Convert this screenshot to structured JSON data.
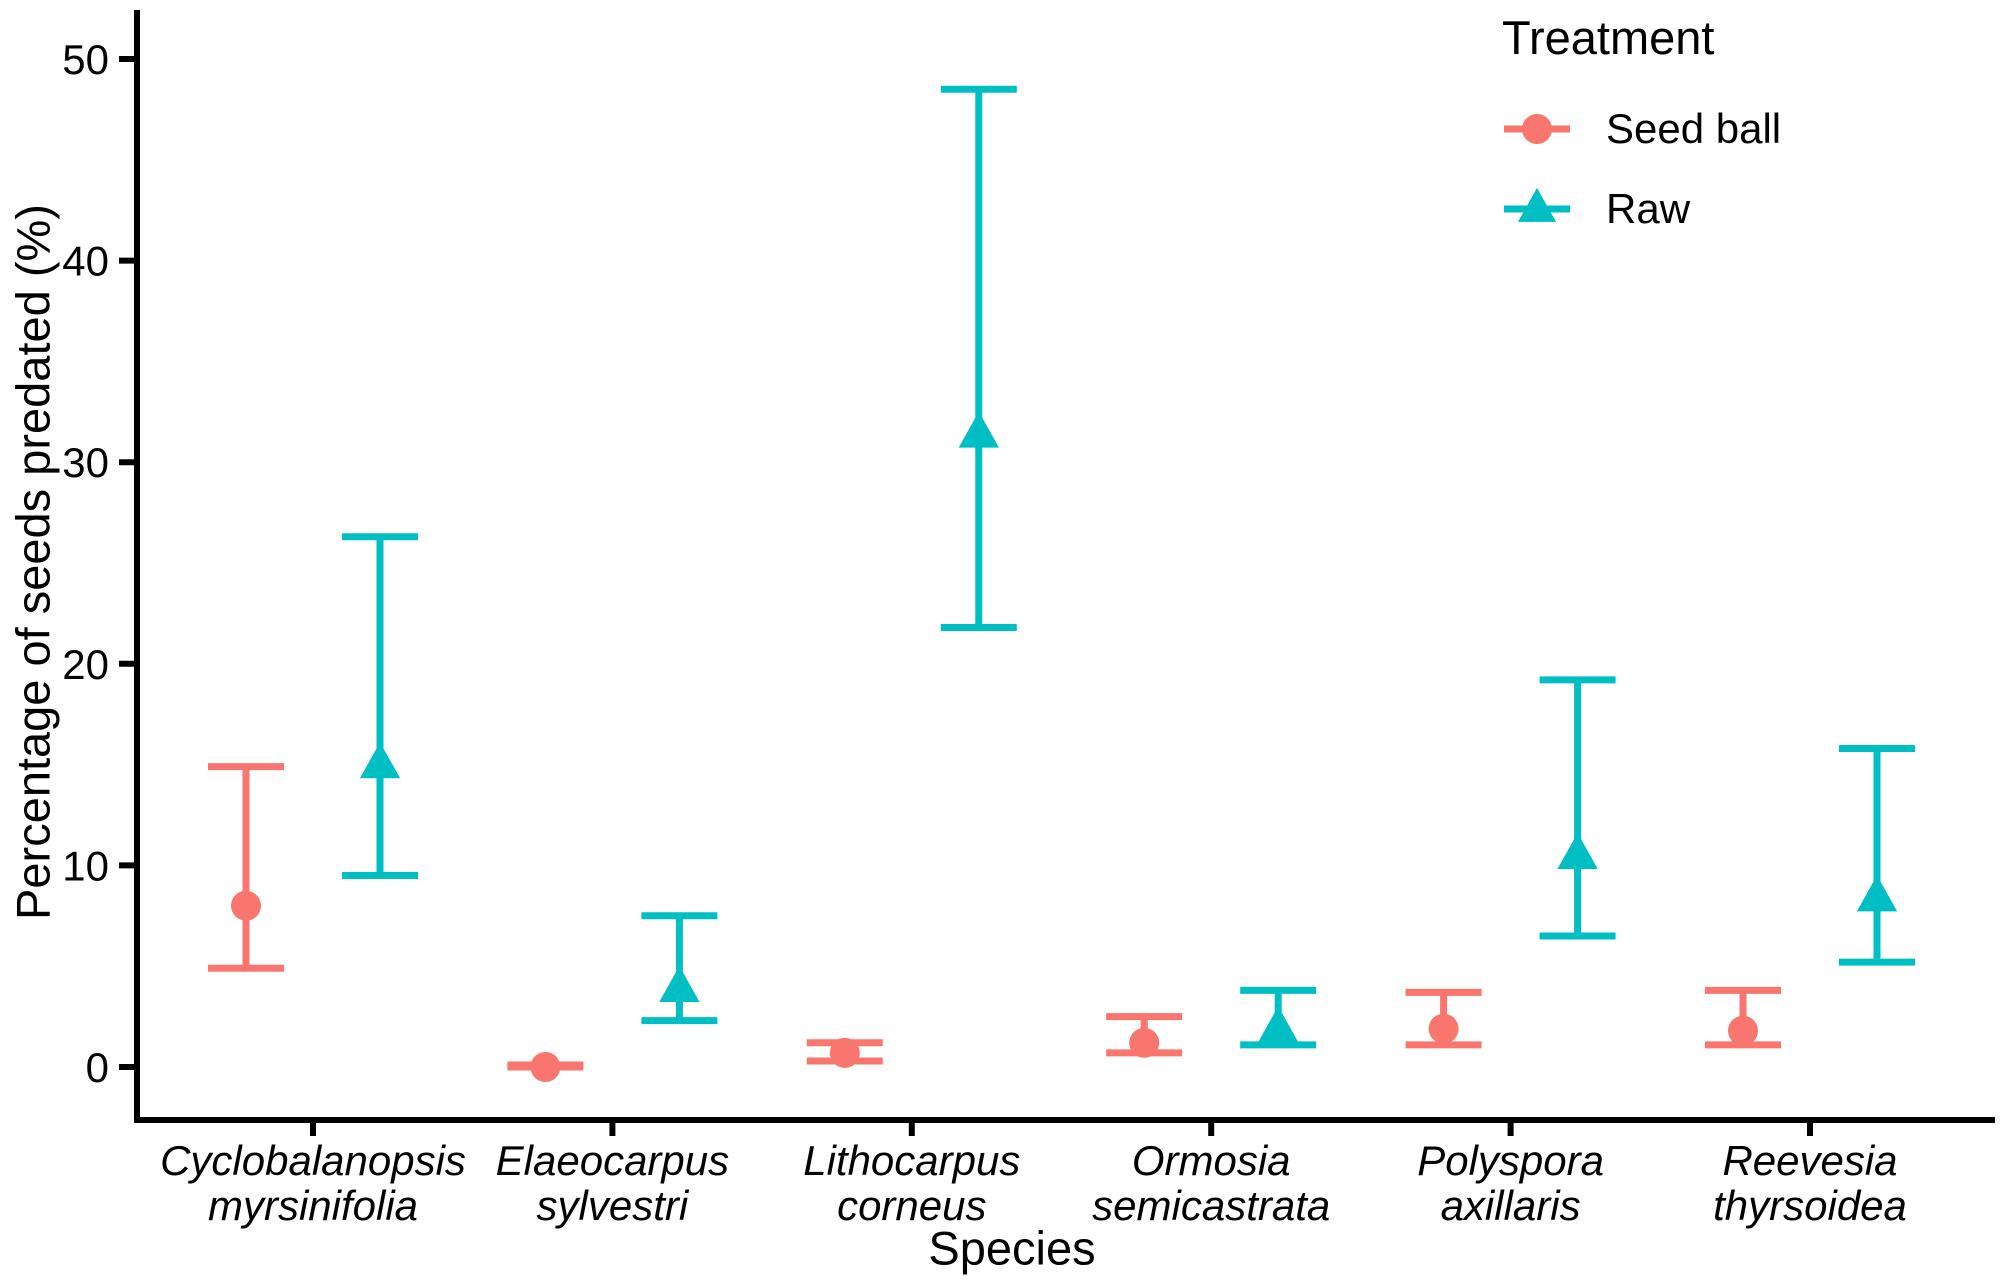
{
  "chart_data": {
    "type": "scatter",
    "subtype": "point-estimates-with-error-bars",
    "title": "",
    "xlabel": "Species",
    "ylabel": "Percentage of seeds predated (%)",
    "legend_title": "Treatment",
    "legend_position": "top-right inside",
    "grid": false,
    "background": "#ffffff",
    "axis_color": "#000000",
    "yticks": [
      0,
      10,
      20,
      30,
      40,
      50
    ],
    "ylim": [
      -2.6,
      52.4
    ],
    "categories": [
      {
        "line1": "Cyclobalanopsis",
        "line2": "myrsinifolia"
      },
      {
        "line1": "Elaeocarpus",
        "line2": "sylvestri"
      },
      {
        "line1": "Lithocarpus",
        "line2": "corneus"
      },
      {
        "line1": "Ormosia",
        "line2": "semicastrata"
      },
      {
        "line1": "Polyspora",
        "line2": "axillaris"
      },
      {
        "line1": "Reevesia",
        "line2": "thyrsoidea"
      }
    ],
    "series": [
      {
        "name": "Seed ball",
        "marker": "circle",
        "color": "#F8766D",
        "points": [
          {
            "mean": 8.0,
            "lo": 4.9,
            "hi": 14.9
          },
          {
            "mean": 0.0,
            "lo": 0.0,
            "hi": 0.1
          },
          {
            "mean": 0.7,
            "lo": 0.3,
            "hi": 1.2
          },
          {
            "mean": 1.2,
            "lo": 0.7,
            "hi": 2.5
          },
          {
            "mean": 1.9,
            "lo": 1.1,
            "hi": 3.7
          },
          {
            "mean": 1.8,
            "lo": 1.1,
            "hi": 3.8
          }
        ]
      },
      {
        "name": "Raw",
        "marker": "triangle",
        "color": "#00BFC4",
        "points": [
          {
            "mean": 15.0,
            "lo": 9.5,
            "hi": 26.3
          },
          {
            "mean": 3.9,
            "lo": 2.3,
            "hi": 7.5
          },
          {
            "mean": 31.4,
            "lo": 21.8,
            "hi": 48.5
          },
          {
            "mean": 1.9,
            "lo": 1.1,
            "hi": 3.8
          },
          {
            "mean": 10.5,
            "lo": 6.5,
            "hi": 19.2
          },
          {
            "mean": 8.4,
            "lo": 5.2,
            "hi": 15.8
          }
        ]
      }
    ]
  }
}
